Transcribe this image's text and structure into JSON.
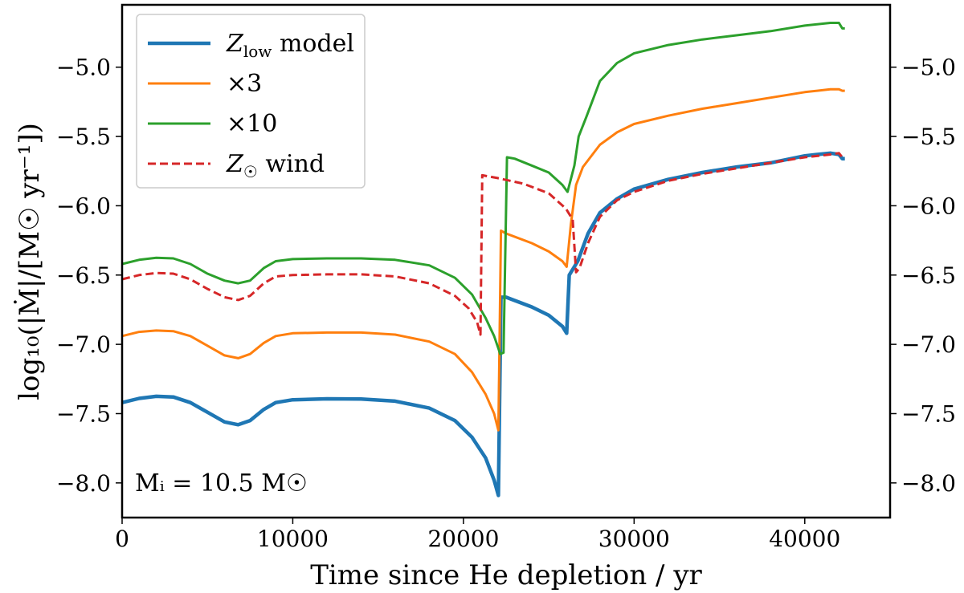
{
  "chart_data": {
    "type": "line",
    "xlabel": "Time since He depletion / yr",
    "ylabel": "log₁₀(|Ṁ|/[M☉ yr⁻¹])",
    "xlim": [
      0,
      45000
    ],
    "ylim": [
      -8.25,
      -4.55
    ],
    "x_ticks": [
      0,
      10000,
      20000,
      30000,
      40000
    ],
    "x_tick_labels": [
      "0",
      "10000",
      "20000",
      "30000",
      "40000"
    ],
    "y_ticks": [
      -8.0,
      -7.5,
      -7.0,
      -6.5,
      -6.0,
      -5.5,
      -5.0
    ],
    "y_tick_labels": [
      "−8.0",
      "−7.5",
      "−7.0",
      "−6.5",
      "−6.0",
      "−5.5",
      "−5.0"
    ],
    "right_y_axis": true,
    "grid": false,
    "legend_position": "upper-left",
    "annotation": "Mᵢ = 10.5 M☉",
    "annotation_position": "lower-left",
    "series": [
      {
        "name": "Z_low model",
        "legend_main": "Z",
        "legend_sub": "low",
        "legend_rest": " model",
        "color": "#1f77b4",
        "style": "solid",
        "width": 4.5,
        "points": [
          [
            0,
            -7.42
          ],
          [
            1000,
            -7.39
          ],
          [
            2000,
            -7.375
          ],
          [
            3000,
            -7.38
          ],
          [
            4000,
            -7.42
          ],
          [
            5000,
            -7.49
          ],
          [
            6000,
            -7.56
          ],
          [
            6800,
            -7.58
          ],
          [
            7500,
            -7.55
          ],
          [
            8300,
            -7.47
          ],
          [
            9000,
            -7.42
          ],
          [
            10000,
            -7.4
          ],
          [
            12000,
            -7.393
          ],
          [
            14000,
            -7.395
          ],
          [
            16000,
            -7.41
          ],
          [
            18000,
            -7.46
          ],
          [
            19500,
            -7.55
          ],
          [
            20500,
            -7.67
          ],
          [
            21300,
            -7.82
          ],
          [
            21800,
            -7.98
          ],
          [
            22050,
            -8.09
          ],
          [
            22200,
            -6.66
          ],
          [
            22500,
            -6.66
          ],
          [
            24000,
            -6.73
          ],
          [
            25000,
            -6.79
          ],
          [
            25800,
            -6.87
          ],
          [
            26050,
            -6.92
          ],
          [
            26200,
            -6.5
          ],
          [
            26700,
            -6.4
          ],
          [
            27300,
            -6.2
          ],
          [
            28000,
            -6.05
          ],
          [
            29000,
            -5.95
          ],
          [
            30000,
            -5.88
          ],
          [
            32000,
            -5.81
          ],
          [
            34000,
            -5.76
          ],
          [
            36000,
            -5.72
          ],
          [
            38000,
            -5.69
          ],
          [
            40000,
            -5.64
          ],
          [
            41500,
            -5.62
          ],
          [
            42000,
            -5.63
          ],
          [
            42200,
            -5.66
          ],
          [
            42350,
            -5.66
          ]
        ]
      },
      {
        "name": "×3",
        "color": "#ff7f0e",
        "style": "solid",
        "width": 3,
        "points": [
          [
            0,
            -6.94
          ],
          [
            1000,
            -6.91
          ],
          [
            2000,
            -6.9
          ],
          [
            3000,
            -6.905
          ],
          [
            4000,
            -6.94
          ],
          [
            5000,
            -7.01
          ],
          [
            6000,
            -7.08
          ],
          [
            6800,
            -7.1
          ],
          [
            7500,
            -7.07
          ],
          [
            8300,
            -6.99
          ],
          [
            9000,
            -6.94
          ],
          [
            10000,
            -6.92
          ],
          [
            12000,
            -6.915
          ],
          [
            14000,
            -6.915
          ],
          [
            16000,
            -6.93
          ],
          [
            18000,
            -6.98
          ],
          [
            19500,
            -7.07
          ],
          [
            20500,
            -7.2
          ],
          [
            21300,
            -7.36
          ],
          [
            21800,
            -7.5
          ],
          [
            22050,
            -7.62
          ],
          [
            22200,
            -6.18
          ],
          [
            22500,
            -6.2
          ],
          [
            24000,
            -6.27
          ],
          [
            25000,
            -6.33
          ],
          [
            25800,
            -6.4
          ],
          [
            26050,
            -6.44
          ],
          [
            26300,
            -6.13
          ],
          [
            26600,
            -5.85
          ],
          [
            27000,
            -5.72
          ],
          [
            28000,
            -5.56
          ],
          [
            29000,
            -5.47
          ],
          [
            30000,
            -5.41
          ],
          [
            32000,
            -5.35
          ],
          [
            34000,
            -5.3
          ],
          [
            36000,
            -5.26
          ],
          [
            38000,
            -5.22
          ],
          [
            40000,
            -5.18
          ],
          [
            41500,
            -5.16
          ],
          [
            42000,
            -5.16
          ],
          [
            42200,
            -5.17
          ],
          [
            42350,
            -5.17
          ]
        ]
      },
      {
        "name": "×10",
        "color": "#2ca02c",
        "style": "solid",
        "width": 3,
        "points": [
          [
            0,
            -6.42
          ],
          [
            1000,
            -6.39
          ],
          [
            2000,
            -6.375
          ],
          [
            3000,
            -6.38
          ],
          [
            4000,
            -6.42
          ],
          [
            5000,
            -6.49
          ],
          [
            6000,
            -6.54
          ],
          [
            6800,
            -6.56
          ],
          [
            7500,
            -6.54
          ],
          [
            8300,
            -6.45
          ],
          [
            9000,
            -6.4
          ],
          [
            10000,
            -6.385
          ],
          [
            12000,
            -6.38
          ],
          [
            14000,
            -6.38
          ],
          [
            16000,
            -6.39
          ],
          [
            18000,
            -6.43
          ],
          [
            19500,
            -6.52
          ],
          [
            20500,
            -6.64
          ],
          [
            21300,
            -6.81
          ],
          [
            21800,
            -6.94
          ],
          [
            22050,
            -7.03
          ],
          [
            22150,
            -7.07
          ],
          [
            22350,
            -7.06
          ],
          [
            22550,
            -5.65
          ],
          [
            23000,
            -5.66
          ],
          [
            24000,
            -5.71
          ],
          [
            25000,
            -5.76
          ],
          [
            25800,
            -5.85
          ],
          [
            26100,
            -5.9
          ],
          [
            26500,
            -5.71
          ],
          [
            26750,
            -5.5
          ],
          [
            27200,
            -5.36
          ],
          [
            28000,
            -5.1
          ],
          [
            29000,
            -4.97
          ],
          [
            30000,
            -4.9
          ],
          [
            32000,
            -4.84
          ],
          [
            34000,
            -4.8
          ],
          [
            36000,
            -4.77
          ],
          [
            38000,
            -4.74
          ],
          [
            40000,
            -4.7
          ],
          [
            41500,
            -4.68
          ],
          [
            42000,
            -4.68
          ],
          [
            42200,
            -4.72
          ],
          [
            42350,
            -4.72
          ]
        ]
      },
      {
        "name": "Z☉ wind",
        "legend_main": "Z",
        "legend_sub": "☉",
        "legend_rest": " wind",
        "color": "#d62728",
        "style": "dashed",
        "width": 3,
        "points": [
          [
            0,
            -6.53
          ],
          [
            1000,
            -6.5
          ],
          [
            2000,
            -6.485
          ],
          [
            3000,
            -6.49
          ],
          [
            4000,
            -6.53
          ],
          [
            5000,
            -6.6
          ],
          [
            6000,
            -6.66
          ],
          [
            6800,
            -6.68
          ],
          [
            7500,
            -6.65
          ],
          [
            8300,
            -6.56
          ],
          [
            9000,
            -6.51
          ],
          [
            10000,
            -6.5
          ],
          [
            12000,
            -6.495
          ],
          [
            14000,
            -6.495
          ],
          [
            16000,
            -6.51
          ],
          [
            18000,
            -6.56
          ],
          [
            19500,
            -6.65
          ],
          [
            20300,
            -6.74
          ],
          [
            20800,
            -6.84
          ],
          [
            21000,
            -6.93
          ],
          [
            21100,
            -5.78
          ],
          [
            22000,
            -5.8
          ],
          [
            23500,
            -5.84
          ],
          [
            25000,
            -5.91
          ],
          [
            26000,
            -6.02
          ],
          [
            26400,
            -6.1
          ],
          [
            26600,
            -6.48
          ],
          [
            26800,
            -6.45
          ],
          [
            27300,
            -6.27
          ],
          [
            28000,
            -6.08
          ],
          [
            29000,
            -5.96
          ],
          [
            30000,
            -5.9
          ],
          [
            32000,
            -5.82
          ],
          [
            34000,
            -5.77
          ],
          [
            36000,
            -5.73
          ],
          [
            38000,
            -5.69
          ],
          [
            40000,
            -5.65
          ],
          [
            41500,
            -5.63
          ],
          [
            42000,
            -5.62
          ],
          [
            42200,
            -5.65
          ],
          [
            42350,
            -5.65
          ]
        ]
      }
    ]
  }
}
